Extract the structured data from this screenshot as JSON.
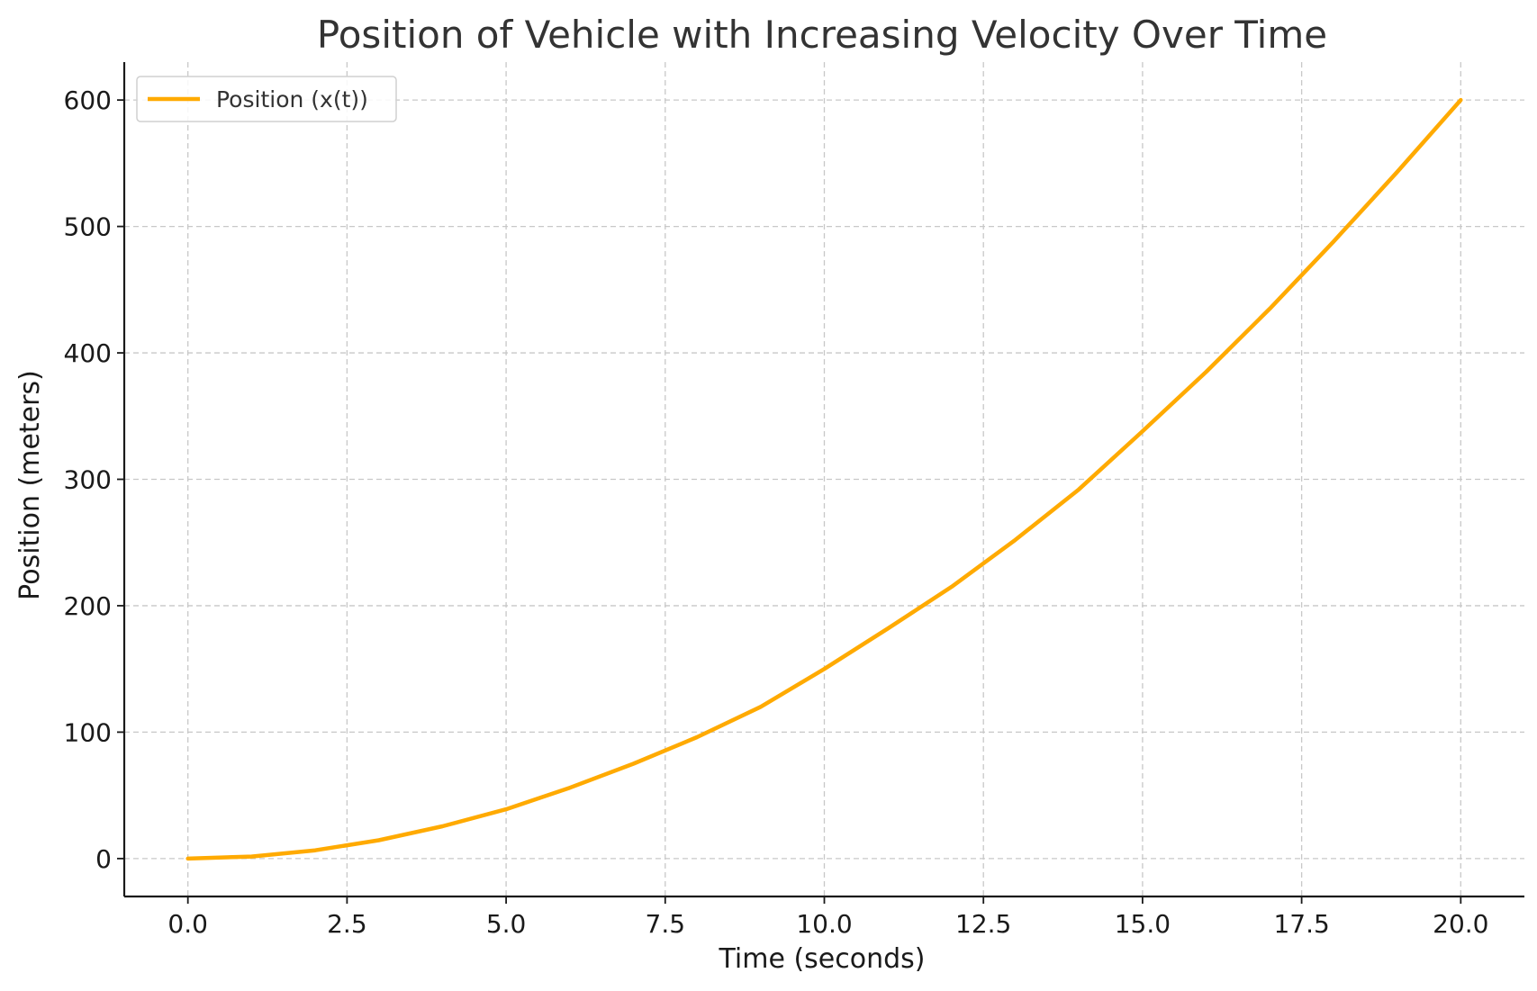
{
  "chart_data": {
    "type": "line",
    "title": "Position of Vehicle with Increasing Velocity Over Time",
    "xlabel": "Time (seconds)",
    "ylabel": "Position (meters)",
    "xlim": [
      -1,
      21
    ],
    "ylim": [
      -30,
      630
    ],
    "xticks": [
      0.0,
      2.5,
      5.0,
      7.5,
      10.0,
      12.5,
      15.0,
      17.5,
      20.0
    ],
    "xtick_labels": [
      "0.0",
      "2.5",
      "5.0",
      "7.5",
      "10.0",
      "12.5",
      "15.0",
      "17.5",
      "20.0"
    ],
    "yticks": [
      0,
      100,
      200,
      300,
      400,
      500,
      600
    ],
    "ytick_labels": [
      "0",
      "100",
      "200",
      "300",
      "400",
      "500",
      "600"
    ],
    "grid": true,
    "legend": {
      "placement": "upper-left"
    },
    "series": [
      {
        "name": "Position (x(t))",
        "color": "#ffaa00",
        "x": [
          0,
          1,
          2,
          3,
          4,
          5,
          6,
          7,
          8,
          9,
          10,
          11,
          12,
          13,
          14,
          15,
          16,
          17,
          18,
          19,
          20
        ],
        "y": [
          0,
          1.6,
          6.5,
          14.5,
          25.5,
          39,
          56,
          75,
          96,
          120,
          150,
          182,
          215,
          252,
          292,
          338,
          385,
          435,
          488,
          543,
          600
        ]
      }
    ]
  }
}
